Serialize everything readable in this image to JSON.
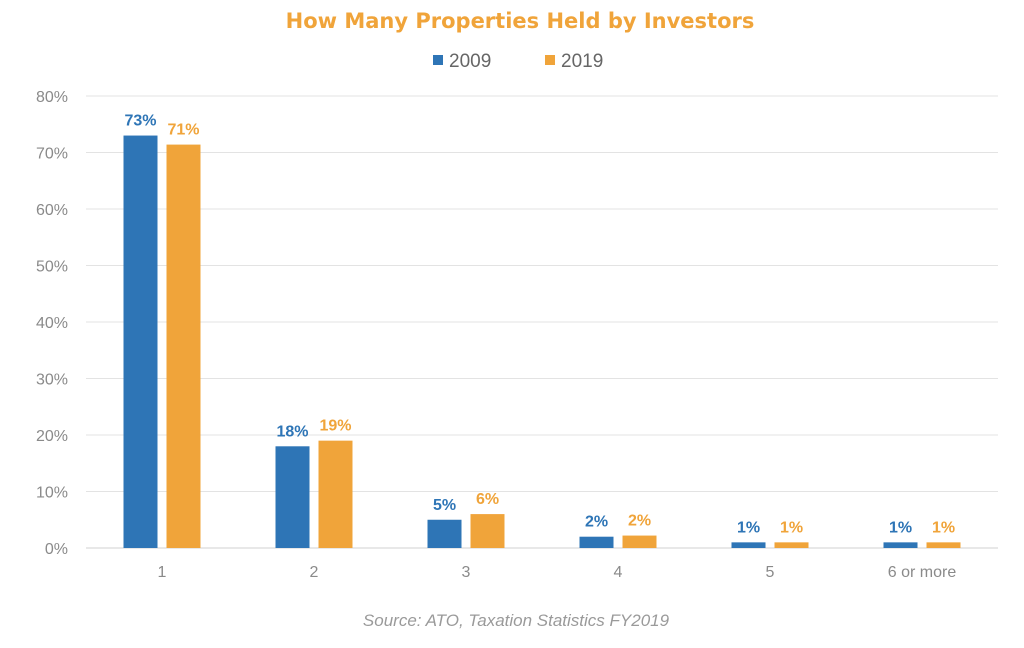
{
  "chart_data": {
    "type": "bar",
    "title": "How Many Properties Held by Investors",
    "categories": [
      "1",
      "2",
      "3",
      "4",
      "5",
      "6 or more"
    ],
    "series": [
      {
        "name": "2009",
        "values": [
          73,
          18,
          5,
          2,
          1,
          1
        ],
        "labels": [
          "73%",
          "18%",
          "5%",
          "2%",
          "1%",
          "1%"
        ],
        "color": "#2e75b6"
      },
      {
        "name": "2019",
        "values": [
          71.4,
          19,
          6,
          2.2,
          1,
          1
        ],
        "labels": [
          "71%",
          "19%",
          "6%",
          "2%",
          "1%",
          "1%"
        ],
        "color": "#f0a43a"
      }
    ],
    "yticks": [
      "0%",
      "10%",
      "20%",
      "30%",
      "40%",
      "50%",
      "60%",
      "70%",
      "80%"
    ],
    "ylim": [
      0,
      80
    ],
    "xlabel": "",
    "ylabel": "",
    "grid": true,
    "legend": "top-center",
    "title_color": "#f0a43a",
    "source": "Source: ATO, Taxation Statistics FY2019"
  }
}
